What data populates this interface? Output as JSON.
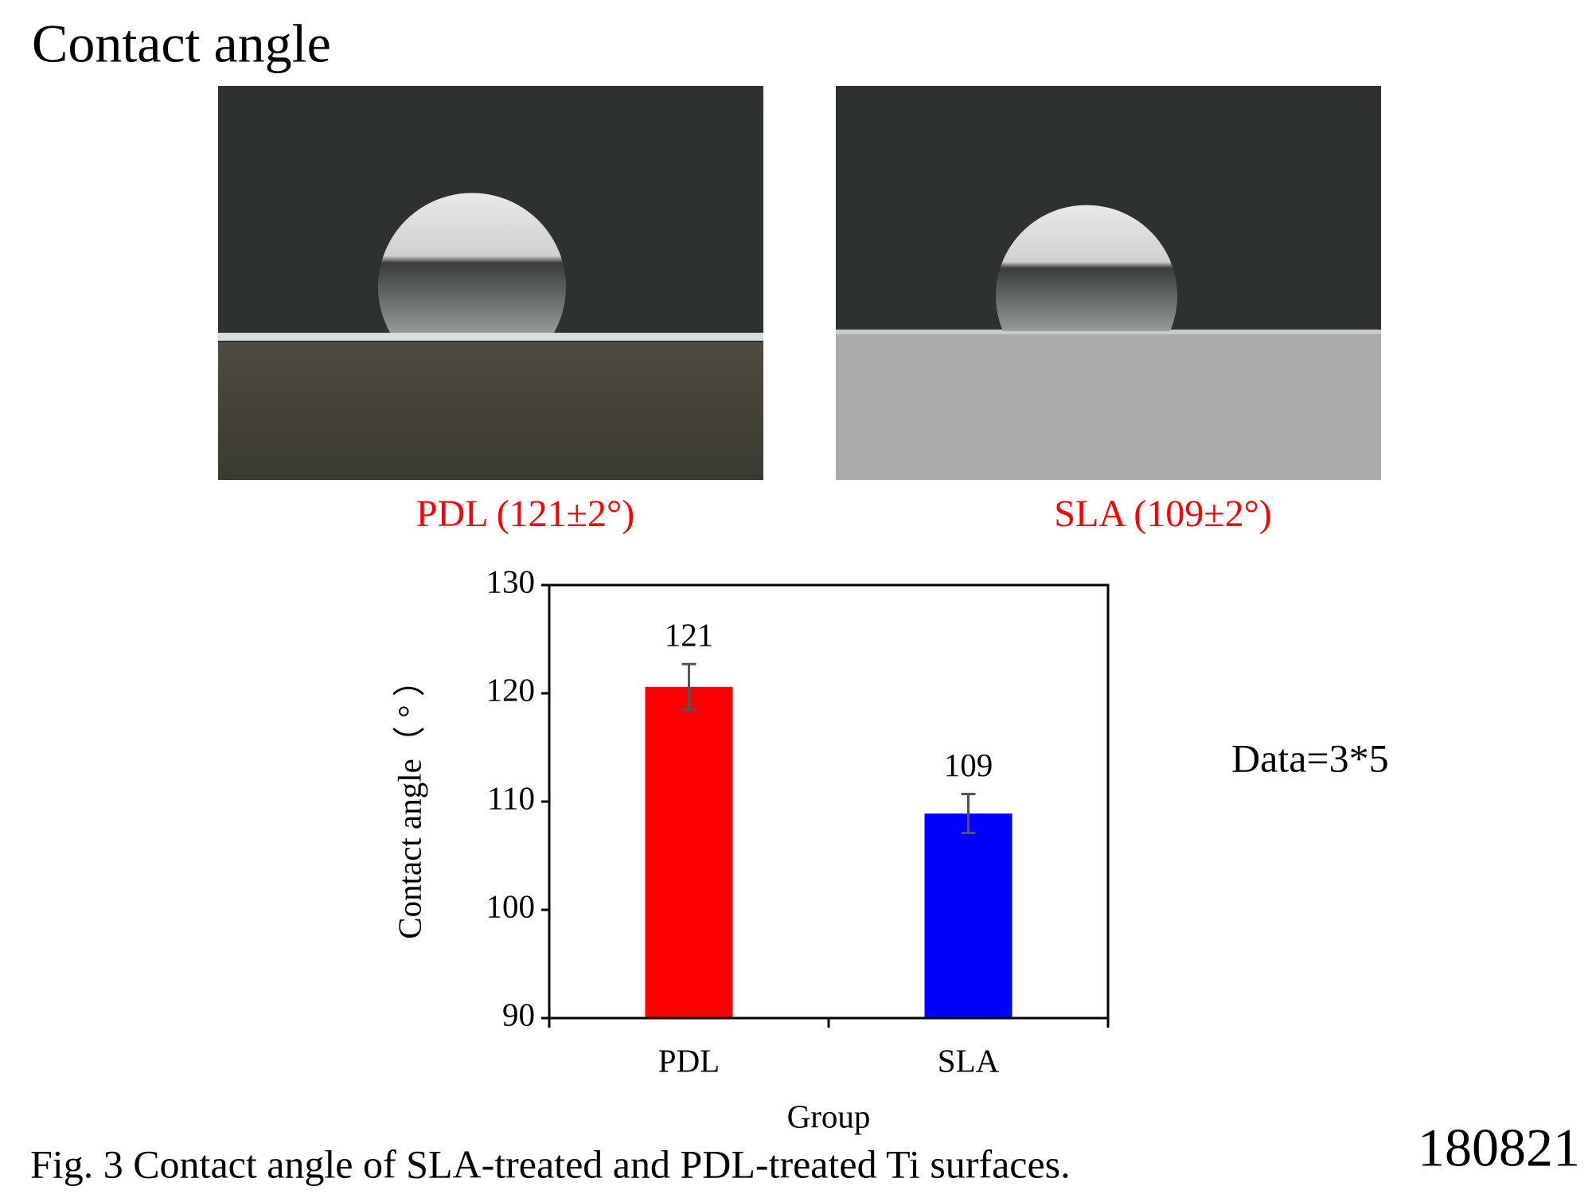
{
  "title": "Contact angle",
  "photo_captions": [
    "PDL (121±2°)",
    "SLA (109±2°)"
  ],
  "data_note": "Data=3*5",
  "caption": "Fig. 3 Contact angle of SLA-treated and PDL-treated Ti surfaces.",
  "slide_id": "180821",
  "chart_data": {
    "type": "bar",
    "x_label": "Group",
    "y_label": "Contact angle（ ° ）",
    "categories": [
      "PDL",
      "SLA"
    ],
    "values": [
      120.6,
      108.9
    ],
    "value_labels": [
      "121",
      "109"
    ],
    "errors": [
      2.1,
      1.8
    ],
    "colors": [
      "#ff0000",
      "#0000ff"
    ],
    "ylim": [
      90,
      130
    ],
    "yticks": [
      90,
      100,
      110,
      120,
      130
    ],
    "grid": false
  }
}
